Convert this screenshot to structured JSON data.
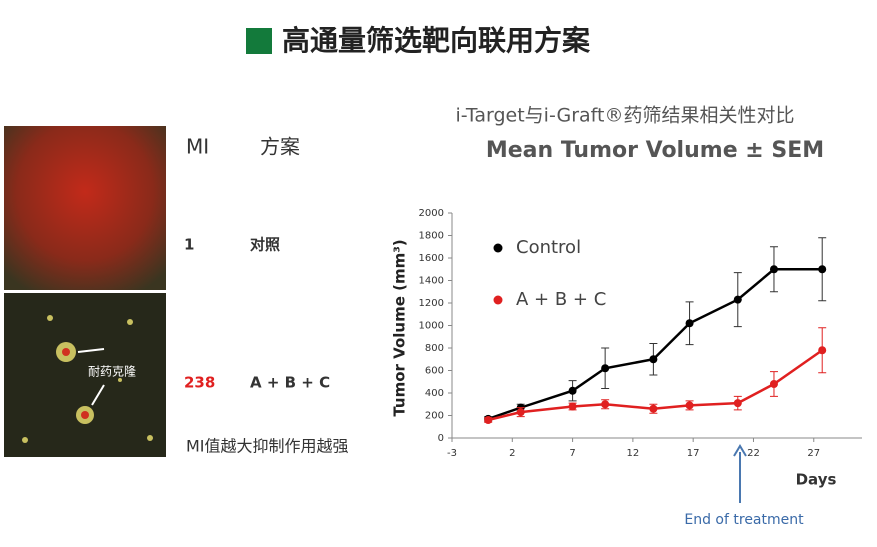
{
  "header": {
    "title": "高通量筛选靶向联用方案"
  },
  "table": {
    "columns": [
      "MI",
      "方案"
    ],
    "rows": [
      [
        1,
        "对照"
      ],
      [
        238,
        "A + B + C"
      ]
    ],
    "note": "MI值越大抑制作用越强"
  },
  "image_label": "耐药克隆",
  "chart_data": {
    "type": "line",
    "title": "i-Target与i-Graft®药筛结果相关性对比",
    "subtitle": "Mean Tumor Volume  ± SEM",
    "y_label": "Tumor Volume (mm³)",
    "x_label": "Days",
    "annotation": "End of treatment",
    "x": [
      0,
      2.7,
      7,
      9.7,
      13.7,
      16.7,
      20.7,
      23.7,
      27.7
    ],
    "series": [
      {
        "name": "Control",
        "color": "#000000",
        "values": [
          170,
          270,
          420,
          620,
          700,
          1020,
          1230,
          1500,
          1500
        ],
        "errors": [
          20,
          30,
          90,
          180,
          140,
          190,
          240,
          200,
          280
        ]
      },
      {
        "name": "A + B + C",
        "color": "#e02020",
        "values": [
          160,
          230,
          280,
          300,
          260,
          290,
          310,
          480,
          780
        ],
        "errors": [
          20,
          40,
          30,
          40,
          40,
          40,
          60,
          110,
          200
        ]
      }
    ],
    "xlim": [
      -3,
      31
    ],
    "ylim": [
      0,
      2000
    ],
    "xticks": [
      -3,
      2,
      7,
      12,
      17,
      22,
      27
    ],
    "yticks": [
      0,
      200,
      400,
      600,
      800,
      1000,
      1200,
      1400,
      1600,
      1800,
      2000
    ],
    "legend": "upper-left"
  }
}
